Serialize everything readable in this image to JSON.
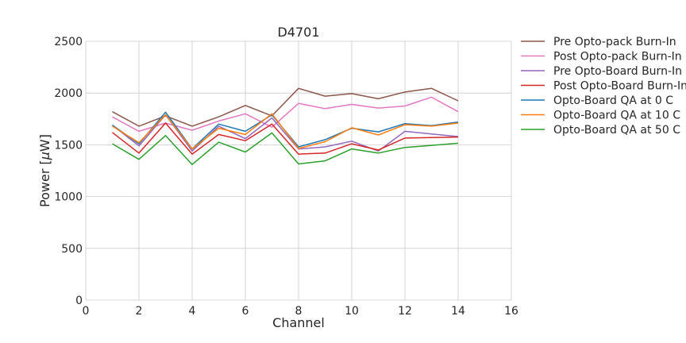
{
  "chart_data": {
    "type": "line",
    "title": "D4701",
    "xlabel": "Channel",
    "ylabel_prefix": "Power [",
    "ylabel_mu": "μ",
    "ylabel_suffix": "W]",
    "xlim": [
      0,
      16
    ],
    "ylim": [
      0,
      2500
    ],
    "xticks": [
      "0",
      "2",
      "4",
      "6",
      "8",
      "10",
      "12",
      "14",
      "16"
    ],
    "yticks": [
      "0",
      "500",
      "1000",
      "1500",
      "2000",
      "2500"
    ],
    "grid": true,
    "legend_position": "outside-right",
    "x": [
      1,
      2,
      3,
      4,
      5,
      6,
      7,
      8,
      9,
      10,
      11,
      12,
      13,
      14
    ],
    "series": [
      {
        "name": "Pre Opto-pack Burn-In",
        "color": "#8c564b",
        "values": [
          1820,
          1680,
          1780,
          1680,
          1770,
          1880,
          1780,
          2045,
          1970,
          1995,
          1945,
          2010,
          2045,
          1925
        ]
      },
      {
        "name": "Post Opto-pack Burn-In",
        "color": "#e377c2",
        "values": [
          1770,
          1630,
          1710,
          1640,
          1730,
          1800,
          1670,
          1900,
          1850,
          1890,
          1855,
          1875,
          1960,
          1820
        ]
      },
      {
        "name": "Pre Opto-Board Burn-In",
        "color": "#9467bd",
        "values": [
          1690,
          1490,
          1790,
          1440,
          1680,
          1560,
          1760,
          1460,
          1480,
          1535,
          1440,
          1630,
          1605,
          1580
        ]
      },
      {
        "name": "Post Opto-Board Burn-In",
        "color": "#d62728",
        "values": [
          1620,
          1420,
          1710,
          1410,
          1600,
          1540,
          1700,
          1410,
          1420,
          1510,
          1450,
          1565,
          1570,
          1575
        ]
      },
      {
        "name": "Opto-Board QA at 0 C",
        "color": "#1f77b4",
        "values": [
          1690,
          1510,
          1815,
          1460,
          1700,
          1630,
          1790,
          1480,
          1550,
          1660,
          1625,
          1705,
          1685,
          1720
        ]
      },
      {
        "name": "Opto-Board QA at 10 C",
        "color": "#ff7f0e",
        "values": [
          1680,
          1520,
          1790,
          1460,
          1660,
          1600,
          1800,
          1465,
          1530,
          1665,
          1595,
          1695,
          1680,
          1710
        ]
      },
      {
        "name": "Opto-Board QA at 50 C",
        "color": "#2ca02c",
        "values": [
          1510,
          1360,
          1590,
          1310,
          1525,
          1430,
          1615,
          1315,
          1345,
          1460,
          1420,
          1475,
          1495,
          1515
        ]
      }
    ]
  }
}
